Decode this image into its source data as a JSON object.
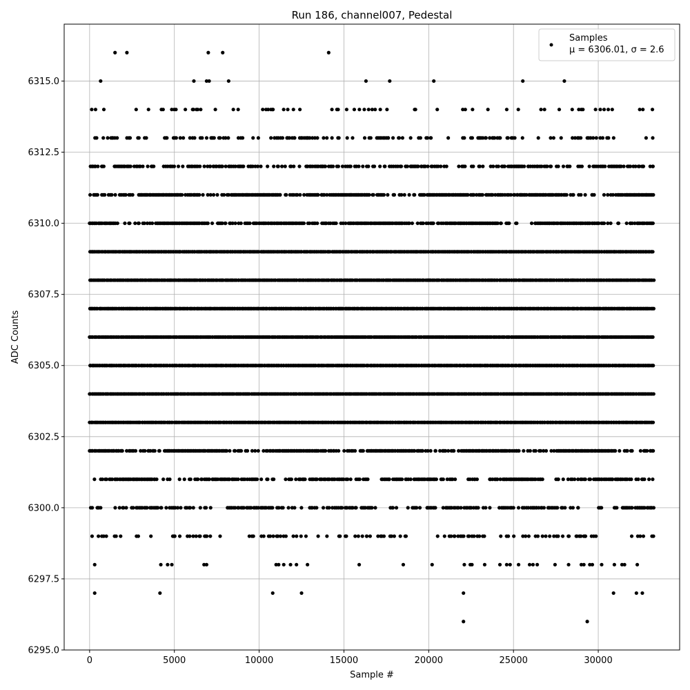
{
  "chart_data": {
    "type": "scatter",
    "title": "Run 186, channel007, Pedestal",
    "xlabel": "Sample #",
    "ylabel": "ADC Counts",
    "xlim": [
      -1500,
      34800
    ],
    "ylim": [
      6295.0,
      6317.0
    ],
    "xticks": [
      0,
      5000,
      10000,
      15000,
      20000,
      25000,
      30000
    ],
    "xtick_labels": [
      "0",
      "5000",
      "10000",
      "15000",
      "20000",
      "25000",
      "30000"
    ],
    "yticks": [
      6295.0,
      6297.5,
      6300.0,
      6302.5,
      6305.0,
      6307.5,
      6310.0,
      6312.5,
      6315.0
    ],
    "ytick_labels": [
      "6295.0",
      "6297.5",
      "6300.0",
      "6302.5",
      "6305.0",
      "6307.5",
      "6310.0",
      "6312.5",
      "6315.0"
    ],
    "grid": true,
    "legend": {
      "position": "top-right",
      "entries": [
        "Samples",
        "μ = 6306.01, σ = 2.6"
      ]
    },
    "marker_color": "#000000",
    "sample_count": 33300,
    "series": [
      {
        "name": "Samples",
        "points": [
          [
            1500,
            6316
          ],
          [
            2200,
            6316
          ],
          [
            7000,
            6316
          ],
          [
            7850,
            6316
          ],
          [
            14100,
            6316
          ],
          [
            650,
            6315
          ],
          [
            6150,
            6315
          ],
          [
            6900,
            6315
          ],
          [
            7050,
            6315
          ],
          [
            8200,
            6315
          ],
          [
            16300,
            6315
          ],
          [
            17700,
            6315
          ],
          [
            20300,
            6315
          ],
          [
            25550,
            6315
          ],
          [
            28000,
            6315
          ],
          [
            4150,
            6297
          ],
          [
            300,
            6297
          ],
          [
            10800,
            6297
          ],
          [
            12500,
            6297
          ],
          [
            30900,
            6297
          ],
          [
            32250,
            6297
          ],
          [
            32600,
            6297
          ],
          [
            22050,
            6297
          ],
          [
            22050,
            6296
          ],
          [
            29350,
            6296
          ],
          [
            300,
            6298
          ],
          [
            4200,
            6298
          ],
          [
            4600,
            6298
          ],
          [
            4850,
            6298
          ],
          [
            6750,
            6298
          ],
          [
            6900,
            6298
          ],
          [
            11000,
            6298
          ],
          [
            11150,
            6298
          ],
          [
            11450,
            6298
          ],
          [
            11850,
            6298
          ],
          [
            12200,
            6298
          ],
          [
            12850,
            6298
          ],
          [
            15900,
            6298
          ],
          [
            18500,
            6298
          ],
          [
            20200,
            6298
          ],
          [
            22100,
            6298
          ],
          [
            22450,
            6298
          ],
          [
            22550,
            6298
          ],
          [
            23300,
            6298
          ],
          [
            24200,
            6298
          ],
          [
            24600,
            6298
          ],
          [
            24800,
            6298
          ],
          [
            25300,
            6298
          ],
          [
            25950,
            6298
          ],
          [
            26150,
            6298
          ],
          [
            26400,
            6298
          ],
          [
            27450,
            6298
          ],
          [
            28250,
            6298
          ],
          [
            29000,
            6298
          ],
          [
            29150,
            6298
          ],
          [
            29500,
            6298
          ],
          [
            29650,
            6298
          ],
          [
            30200,
            6298
          ],
          [
            30950,
            6298
          ],
          [
            31400,
            6298
          ],
          [
            31550,
            6298
          ],
          [
            32300,
            6298
          ]
        ],
        "bands": [
          {
            "y": 6314,
            "density": 0.15
          },
          {
            "y": 6313,
            "density": 0.35
          },
          {
            "y": 6312,
            "density": 0.55
          },
          {
            "y": 6311,
            "density": 0.8
          },
          {
            "y": 6310,
            "density": 0.95
          },
          {
            "y": 6309,
            "density": 1.0
          },
          {
            "y": 6308,
            "density": 1.0
          },
          {
            "y": 6307,
            "density": 1.0
          },
          {
            "y": 6306,
            "density": 1.0
          },
          {
            "y": 6305,
            "density": 1.0
          },
          {
            "y": 6304,
            "density": 1.0
          },
          {
            "y": 6303,
            "density": 1.0
          },
          {
            "y": 6302,
            "density": 0.9
          },
          {
            "y": 6301,
            "density": 0.65
          },
          {
            "y": 6300,
            "density": 0.55
          },
          {
            "y": 6299,
            "density": 0.25
          }
        ]
      }
    ]
  }
}
